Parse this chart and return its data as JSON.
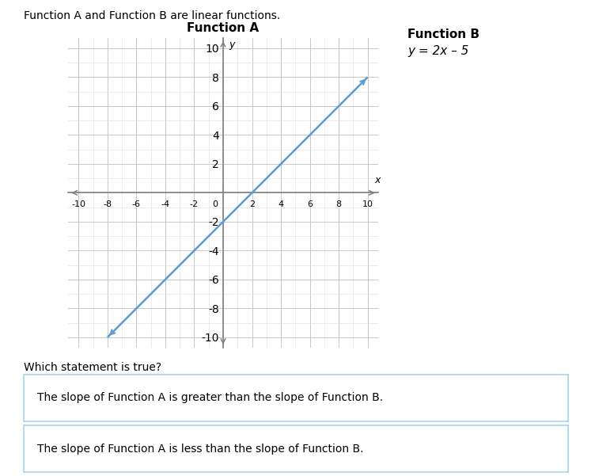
{
  "header_text": "Function A and Function B are linear functions.",
  "function_a_title": "Function A",
  "function_b_title": "Function B",
  "function_b_equation": "y = 2x – 5",
  "function_a_slope": 1,
  "function_a_intercept": -2,
  "line_color": "#5b9bd5",
  "line_width": 1.8,
  "axis_range": [
    -10,
    10
  ],
  "tick_step": 2,
  "grid_major_color": "#c8c8c8",
  "grid_minor_color": "#dedede",
  "axis_color": "#808080",
  "background_color": "#ffffff",
  "question_text": "Which statement is true?",
  "answer1": "The slope of Function A is greater than the slope of Function B.",
  "answer2": "The slope of Function A is less than the slope of Function B.",
  "answer_box_border": "#a8d4e6",
  "font_color": "#000000",
  "graph_title_fontsize": 11,
  "axis_label_fontsize": 9,
  "tick_fontsize": 8,
  "header_fontsize": 10,
  "question_fontsize": 10,
  "answer_fontsize": 10,
  "func_b_title_fontsize": 11
}
